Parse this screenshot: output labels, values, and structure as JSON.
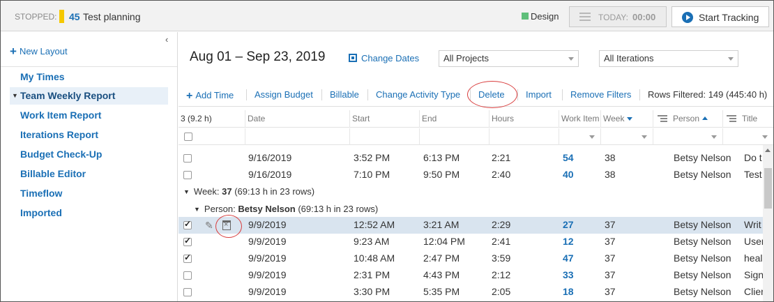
{
  "topbar": {
    "stopped_label": "STOPPED:",
    "work_item_id": "45",
    "work_item_name": "Test planning",
    "activity_type": "Design",
    "activity_color": "#5fbf7a",
    "today_label": "TODAY:",
    "today_time": "00:00",
    "start_tracking": "Start Tracking"
  },
  "sidebar": {
    "collapse_glyph": "‹",
    "new_layout": "New Layout",
    "items": [
      {
        "label": "My Times"
      },
      {
        "label": "Team Weekly Report",
        "active": true
      },
      {
        "label": "Work Item Report"
      },
      {
        "label": "Iterations Report"
      },
      {
        "label": "Budget Check-Up"
      },
      {
        "label": "Billable Editor"
      },
      {
        "label": "Timeflow"
      },
      {
        "label": "Imported"
      }
    ]
  },
  "header": {
    "date_range": "Aug 01 – Sep 23, 2019",
    "change_dates": "Change Dates",
    "projects_select": "All Projects",
    "iterations_select": "All Iterations"
  },
  "toolbar": {
    "add_time": "Add Time",
    "assign_budget": "Assign Budget",
    "billable": "Billable",
    "change_activity_type": "Change Activity Type",
    "delete": "Delete",
    "import": "Import",
    "remove_filters": "Remove Filters",
    "rows_filtered": "Rows Filtered: 149 (445:40 h)"
  },
  "grid": {
    "selection_summary": "3 (9.2 h)",
    "columns": {
      "date": "Date",
      "start": "Start",
      "end": "End",
      "hours": "Hours",
      "work_item": "Work Item",
      "week": "Week",
      "person": "Person",
      "title": "Title"
    },
    "group_week": {
      "prefix": "Week: ",
      "value": "37",
      "summary": " (69:13 h in 23 rows)"
    },
    "group_person": {
      "prefix": "Person: ",
      "value": "Betsy Nelson",
      "summary": " (69:13 h in 23 rows)"
    },
    "rows_before": [
      {
        "checked": false,
        "date": "9/16/2019",
        "start": "3:52 PM",
        "end": "6:13 PM",
        "hours": "2:21",
        "work_item": "54",
        "week": "38",
        "person": "Betsy Nelson",
        "title": "Do t"
      },
      {
        "checked": false,
        "date": "9/16/2019",
        "start": "7:10 PM",
        "end": "9:50 PM",
        "hours": "2:40",
        "work_item": "40",
        "week": "38",
        "person": "Betsy Nelson",
        "title": "Test"
      }
    ],
    "rows_after": [
      {
        "checked": true,
        "date": "9/9/2019",
        "start": "12:52 AM",
        "end": "3:21 AM",
        "hours": "2:29",
        "work_item": "27",
        "week": "37",
        "person": "Betsy Nelson",
        "title": "Writ"
      },
      {
        "checked": true,
        "date": "9/9/2019",
        "start": "9:23 AM",
        "end": "12:04 PM",
        "hours": "2:41",
        "work_item": "12",
        "week": "37",
        "person": "Betsy Nelson",
        "title": "User"
      },
      {
        "checked": true,
        "date": "9/9/2019",
        "start": "10:48 AM",
        "end": "2:47 PM",
        "hours": "3:59",
        "work_item": "47",
        "week": "37",
        "person": "Betsy Nelson",
        "title": "heal"
      },
      {
        "checked": false,
        "date": "9/9/2019",
        "start": "2:31 PM",
        "end": "4:43 PM",
        "hours": "2:12",
        "work_item": "33",
        "week": "37",
        "person": "Betsy Nelson",
        "title": "Sign"
      },
      {
        "checked": false,
        "date": "9/9/2019",
        "start": "3:30 PM",
        "end": "5:35 PM",
        "hours": "2:05",
        "work_item": "18",
        "week": "37",
        "person": "Betsy Nelson",
        "title": "Clier"
      }
    ]
  },
  "colors": {
    "accent": "#1a6fb5",
    "annotation": "#d93c3c",
    "selected_row": "#d9e4ef",
    "stopped_flag": "#f5c800"
  }
}
